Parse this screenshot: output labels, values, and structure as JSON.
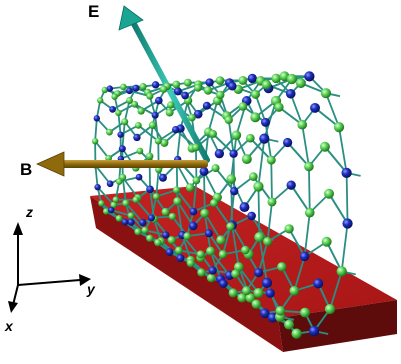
{
  "labels": {
    "efield": "E",
    "bfield": "B",
    "axis_x": "x",
    "axis_y": "y",
    "axis_z": "z"
  },
  "colors": {
    "efield_arrow": "#169e8e",
    "bfield_arrow": "#8f6a0c",
    "substrate_top": "#b81c1c",
    "substrate_front": "#8c1212",
    "substrate_side": "#5e0b0b",
    "bond": "#2a8f82",
    "atom_green": "#5fd45a",
    "atom_blue": "#1f2fc0",
    "axis": "#000000",
    "background": "#ffffff"
  },
  "icons": {
    "nanotube": "nanotube-lattice-icon",
    "substrate": "substrate-slab-icon"
  }
}
